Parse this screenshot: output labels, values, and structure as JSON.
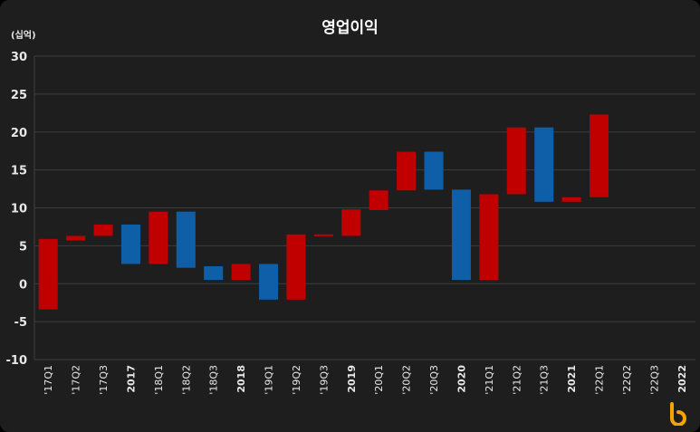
{
  "chart_data": {
    "type": "bar",
    "subtype": "waterfall",
    "title": "영업이익",
    "unit_label": "(십억)",
    "ylim": [
      -10,
      30
    ],
    "y_ticks": [
      30,
      25,
      20,
      15,
      10,
      5,
      0,
      -5,
      -10
    ],
    "grid": true,
    "categories": [
      "'17Q1",
      "'17Q2",
      "'17Q3",
      "2017",
      "'18Q1",
      "'18Q2",
      "'18Q3",
      "2018",
      "'19Q1",
      "'19Q2",
      "'19Q3",
      "2019",
      "'20Q1",
      "'20Q2",
      "'20Q3",
      "2020",
      "'21Q1",
      "'21Q2",
      "'21Q3",
      "2021",
      "'22Q1",
      "'22Q2",
      "'22Q3",
      "2022"
    ],
    "year_categories": [
      "2017",
      "2018",
      "2019",
      "2020",
      "2021",
      "2022"
    ],
    "bars": [
      {
        "category": "'17Q1",
        "from": -3.4,
        "to": 5.9,
        "kind": "quarter"
      },
      {
        "category": "'17Q2",
        "from": 5.7,
        "to": 6.3,
        "kind": "quarter"
      },
      {
        "category": "'17Q3",
        "from": 6.3,
        "to": 7.8,
        "kind": "quarter"
      },
      {
        "category": "2017",
        "from": 2.6,
        "to": 7.8,
        "kind": "annual"
      },
      {
        "category": "'18Q1",
        "from": 2.6,
        "to": 9.5,
        "kind": "quarter"
      },
      {
        "category": "'18Q2",
        "from": 2.1,
        "to": 9.5,
        "kind": "annual"
      },
      {
        "category": "'18Q3",
        "from": 0.5,
        "to": 2.3,
        "kind": "annual"
      },
      {
        "category": "2018",
        "from": 0.5,
        "to": 2.6,
        "kind": "quarter"
      },
      {
        "category": "'19Q1",
        "from": -2.1,
        "to": 2.6,
        "kind": "annual"
      },
      {
        "category": "'19Q2",
        "from": -2.1,
        "to": 6.5,
        "kind": "quarter"
      },
      {
        "category": "'19Q3",
        "from": 6.3,
        "to": 6.5,
        "kind": "quarter"
      },
      {
        "category": "2019",
        "from": 6.3,
        "to": 9.8,
        "kind": "quarter"
      },
      {
        "category": "'20Q1",
        "from": 9.7,
        "to": 12.3,
        "kind": "quarter"
      },
      {
        "category": "'20Q2",
        "from": 12.3,
        "to": 17.4,
        "kind": "quarter"
      },
      {
        "category": "'20Q3",
        "from": 12.4,
        "to": 17.4,
        "kind": "annual"
      },
      {
        "category": "2020",
        "from": 0.5,
        "to": 12.4,
        "kind": "annual"
      },
      {
        "category": "'21Q1",
        "from": 0.5,
        "to": 11.8,
        "kind": "quarter"
      },
      {
        "category": "'21Q2",
        "from": 11.8,
        "to": 20.6,
        "kind": "quarter"
      },
      {
        "category": "'21Q3",
        "from": 10.8,
        "to": 20.6,
        "kind": "annual"
      },
      {
        "category": "2021",
        "from": 10.8,
        "to": 11.4,
        "kind": "quarter"
      },
      {
        "category": "'22Q1",
        "from": 11.4,
        "to": 22.3,
        "kind": "quarter"
      }
    ],
    "colors": {
      "quarter": "#c00000",
      "annual": "#0f5fa8",
      "background": "#1e1e1e",
      "grid": "#3d3d3d",
      "text": "#e8e8e8",
      "brand": "#f5a300"
    }
  },
  "brand": {
    "icon": "b-logo-icon"
  }
}
